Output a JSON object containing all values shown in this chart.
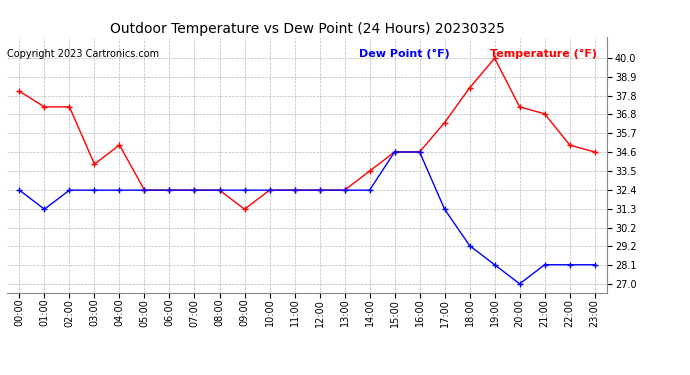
{
  "title": "Outdoor Temperature vs Dew Point (24 Hours) 20230325",
  "copyright": "Copyright 2023 Cartronics.com",
  "legend_dew": "Dew Point (°F)",
  "legend_temp": "Temperature (°F)",
  "hours": [
    "00:00",
    "01:00",
    "02:00",
    "03:00",
    "04:00",
    "05:00",
    "06:00",
    "07:00",
    "08:00",
    "09:00",
    "10:00",
    "11:00",
    "12:00",
    "13:00",
    "14:00",
    "15:00",
    "16:00",
    "17:00",
    "18:00",
    "19:00",
    "20:00",
    "21:00",
    "22:00",
    "23:00"
  ],
  "temperature": [
    38.1,
    37.2,
    37.2,
    33.9,
    35.0,
    32.4,
    32.4,
    32.4,
    32.4,
    31.3,
    32.4,
    32.4,
    32.4,
    32.4,
    33.5,
    34.6,
    34.6,
    36.3,
    38.3,
    40.0,
    37.2,
    36.8,
    35.0,
    34.6
  ],
  "dew_point": [
    32.4,
    31.3,
    32.4,
    32.4,
    32.4,
    32.4,
    32.4,
    32.4,
    32.4,
    32.4,
    32.4,
    32.4,
    32.4,
    32.4,
    32.4,
    34.6,
    34.6,
    31.3,
    29.2,
    28.1,
    27.0,
    28.1,
    28.1,
    28.1
  ],
  "temp_color": "#ff0000",
  "dew_color": "#0000ff",
  "bg_color": "#ffffff",
  "grid_color": "#bbbbbb",
  "title_fontsize": 10,
  "axis_fontsize": 7,
  "legend_fontsize": 8,
  "copyright_fontsize": 7,
  "ylim": [
    26.5,
    41.2
  ],
  "yticks": [
    27.0,
    28.1,
    29.2,
    30.2,
    31.3,
    32.4,
    33.5,
    34.6,
    35.7,
    36.8,
    37.8,
    38.9,
    40.0
  ]
}
